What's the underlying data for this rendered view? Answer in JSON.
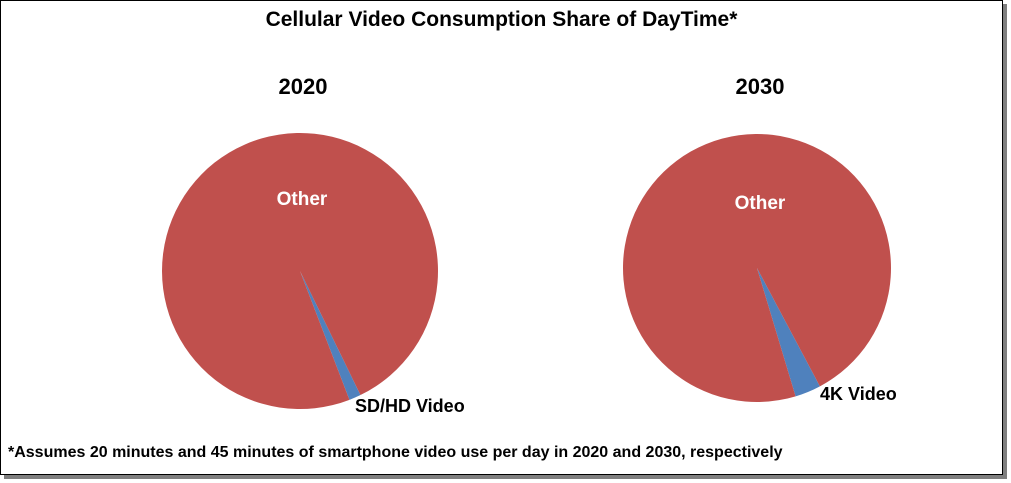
{
  "title": "Cellular Video Consumption  Share of DayTime*",
  "footnote": "*Assumes 20 minutes and 45 minutes of smartphone video use per day in 2020 and 2030, respectively",
  "colors": {
    "other": "#c0504d",
    "video": "#4f81bd",
    "other_label": "#ffffff",
    "video_label": "#000000"
  },
  "chart_data": [
    {
      "type": "pie",
      "title": "2020",
      "slices": [
        {
          "label": "SD/HD Video",
          "value": 1.39
        },
        {
          "label": "Other",
          "value": 98.61
        }
      ]
    },
    {
      "type": "pie",
      "title": "2030",
      "slices": [
        {
          "label": "4K Video",
          "value": 3.13
        },
        {
          "label": "Other",
          "value": 96.87
        }
      ]
    }
  ]
}
